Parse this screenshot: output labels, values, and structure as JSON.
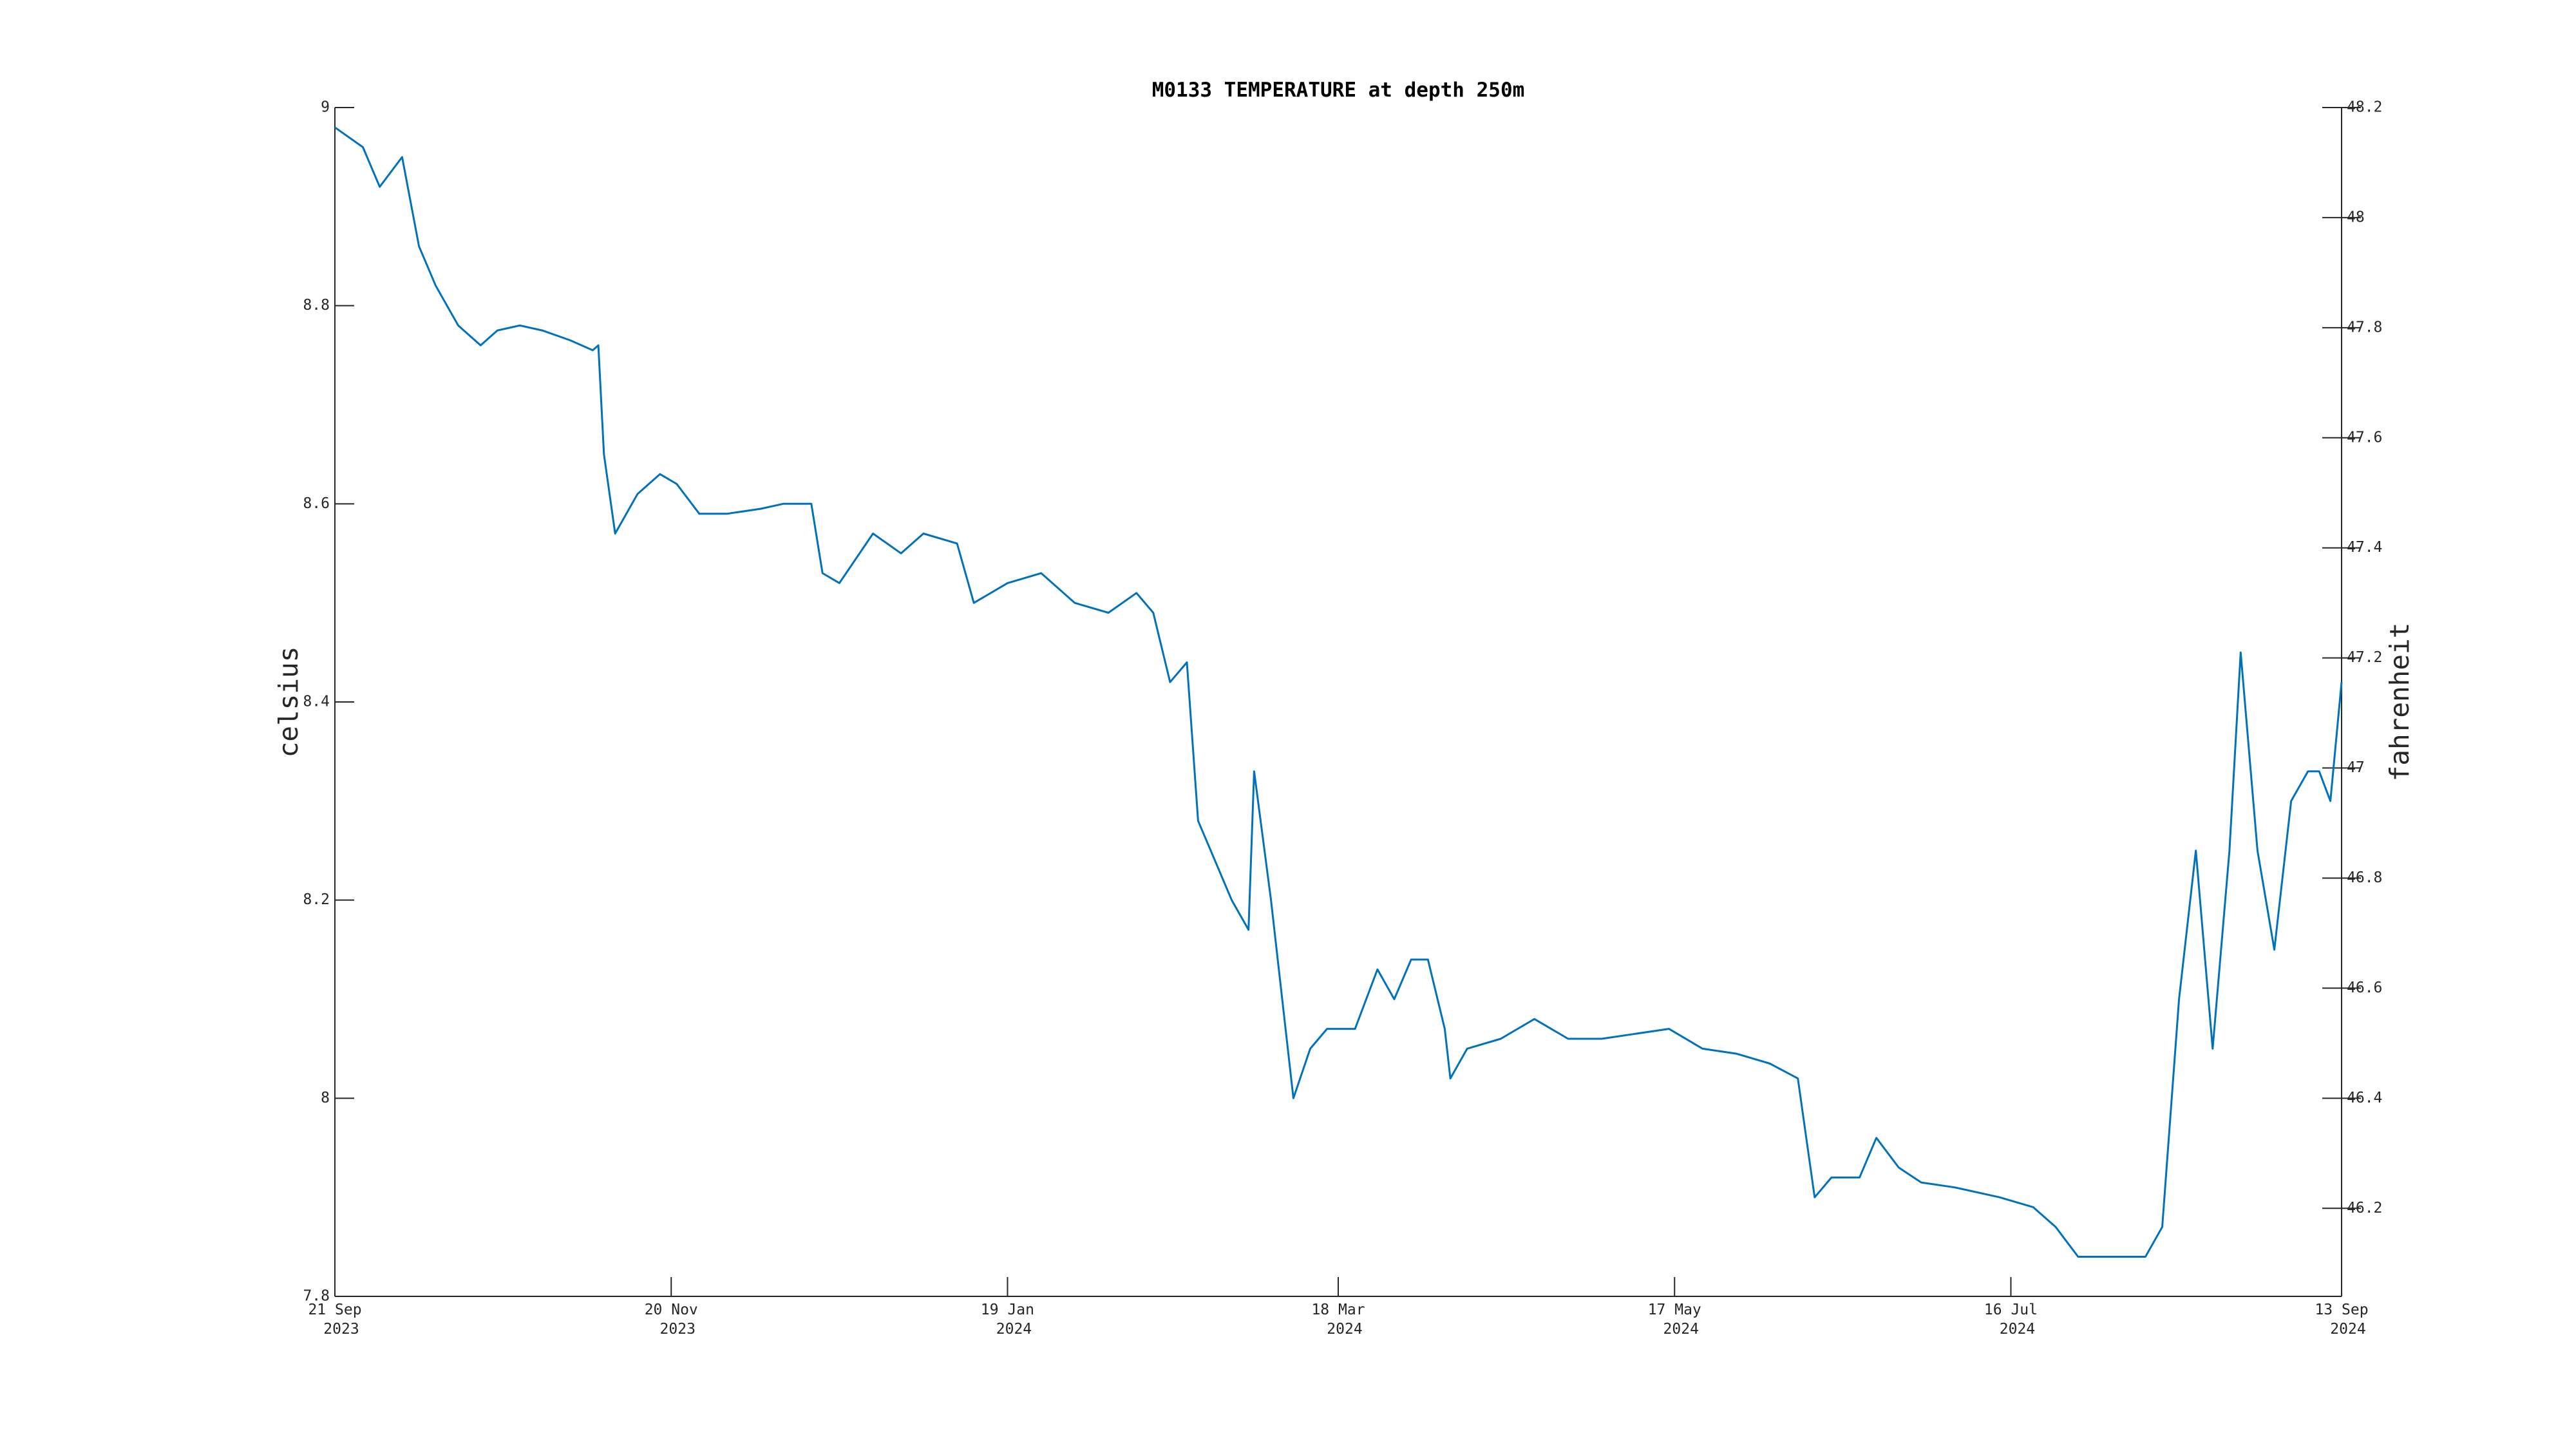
{
  "chart_data": {
    "type": "line",
    "title": "M0133 TEMPERATURE at depth 250m",
    "ylabel": "celsius",
    "y2label": "fahrenheit",
    "x": [
      "2023-09-21",
      "2023-09-26",
      "2023-09-29",
      "2023-10-03",
      "2023-10-06",
      "2023-10-09",
      "2023-10-13",
      "2023-10-17",
      "2023-10-20",
      "2023-10-24",
      "2023-10-28",
      "2023-11-02",
      "2023-11-06",
      "2023-11-07",
      "2023-11-08",
      "2023-11-10",
      "2023-11-14",
      "2023-11-18",
      "2023-11-21",
      "2023-11-25",
      "2023-11-30",
      "2023-12-06",
      "2023-12-10",
      "2023-12-15",
      "2023-12-17",
      "2023-12-20",
      "2023-12-26",
      "2023-12-31",
      "2024-01-04",
      "2024-01-10",
      "2024-01-13",
      "2024-01-19",
      "2024-01-25",
      "2024-01-31",
      "2024-02-06",
      "2024-02-11",
      "2024-02-14",
      "2024-02-17",
      "2024-02-20",
      "2024-02-22",
      "2024-02-25",
      "2024-02-28",
      "2024-03-02",
      "2024-03-03",
      "2024-03-06",
      "2024-03-08",
      "2024-03-10",
      "2024-03-13",
      "2024-03-16",
      "2024-03-21",
      "2024-03-25",
      "2024-03-28",
      "2024-03-31",
      "2024-04-03",
      "2024-04-06",
      "2024-04-07",
      "2024-04-10",
      "2024-04-16",
      "2024-04-22",
      "2024-04-28",
      "2024-05-04",
      "2024-05-10",
      "2024-05-16",
      "2024-05-22",
      "2024-05-28",
      "2024-06-03",
      "2024-06-08",
      "2024-06-11",
      "2024-06-14",
      "2024-06-19",
      "2024-06-22",
      "2024-06-26",
      "2024-06-30",
      "2024-07-06",
      "2024-07-14",
      "2024-07-20",
      "2024-07-24",
      "2024-07-28",
      "2024-08-02",
      "2024-08-06",
      "2024-08-09",
      "2024-08-12",
      "2024-08-15",
      "2024-08-18",
      "2024-08-21",
      "2024-08-24",
      "2024-08-26",
      "2024-08-29",
      "2024-09-01",
      "2024-09-04",
      "2024-09-07",
      "2024-09-09",
      "2024-09-11",
      "2024-09-13"
    ],
    "series": [
      {
        "name": "temperature",
        "color": "#0072bd",
        "values": [
          8.98,
          8.96,
          8.92,
          8.95,
          8.86,
          8.82,
          8.78,
          8.76,
          8.775,
          8.78,
          8.775,
          8.765,
          8.755,
          8.76,
          8.65,
          8.57,
          8.61,
          8.63,
          8.62,
          8.59,
          8.59,
          8.595,
          8.6,
          8.6,
          8.53,
          8.52,
          8.57,
          8.55,
          8.57,
          8.56,
          8.5,
          8.52,
          8.53,
          8.5,
          8.49,
          8.51,
          8.49,
          8.42,
          8.44,
          8.28,
          8.24,
          8.2,
          8.17,
          8.33,
          8.2,
          8.1,
          8.0,
          8.05,
          8.07,
          8.07,
          8.13,
          8.1,
          8.14,
          8.14,
          8.07,
          8.02,
          8.05,
          8.06,
          8.08,
          8.06,
          8.06,
          8.065,
          8.07,
          8.05,
          8.045,
          8.035,
          8.02,
          7.9,
          7.92,
          7.92,
          7.96,
          7.93,
          7.915,
          7.91,
          7.9,
          7.89,
          7.87,
          7.84,
          7.84,
          7.84,
          7.84,
          7.87,
          8.1,
          8.25,
          8.05,
          8.25,
          8.45,
          8.25,
          8.15,
          8.3,
          8.33,
          8.33,
          8.3,
          8.42
        ]
      }
    ],
    "xlim": [
      "2023-09-21",
      "2024-09-13"
    ],
    "xticks": [
      {
        "value": "2023-09-21",
        "label": [
          "21 Sep",
          "2023"
        ]
      },
      {
        "value": "2023-11-20",
        "label": [
          "20 Nov",
          "2023"
        ]
      },
      {
        "value": "2024-01-19",
        "label": [
          "19 Jan",
          "2024"
        ]
      },
      {
        "value": "2024-03-18",
        "label": [
          "18 Mar",
          "2024"
        ]
      },
      {
        "value": "2024-05-17",
        "label": [
          "17 May",
          "2024"
        ]
      },
      {
        "value": "2024-07-16",
        "label": [
          "16 Jul",
          "2024"
        ]
      },
      {
        "value": "2024-09-13",
        "label": [
          "13 Sep",
          "2024"
        ]
      }
    ],
    "ylim": [
      7.8,
      9
    ],
    "yticks": [
      7.8,
      8,
      8.2,
      8.4,
      8.6,
      8.8,
      9
    ],
    "y2lim": [
      46.04,
      48.2
    ],
    "y2ticks": [
      46.2,
      46.4,
      46.6,
      46.8,
      47,
      47.2,
      47.4,
      47.6,
      47.8,
      48,
      48.2
    ]
  }
}
